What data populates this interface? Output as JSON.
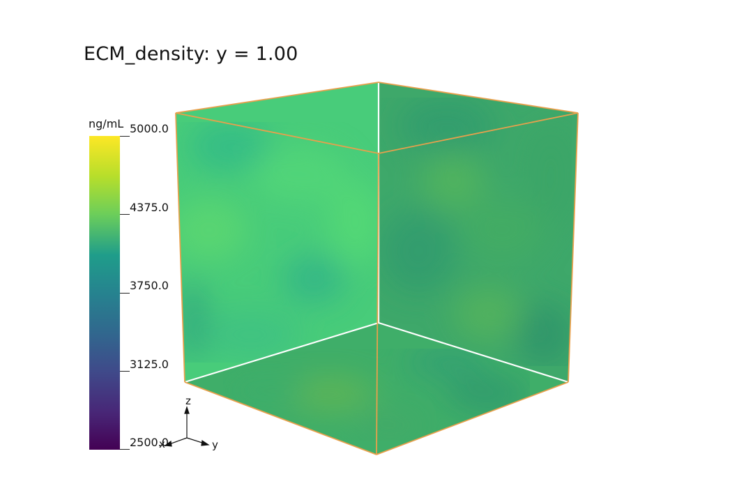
{
  "chart_data": {
    "type": "heatmap",
    "title": "ECM_density: y = 1.00",
    "colorbar": {
      "unit": "ng/mL",
      "colormap": "viridis",
      "range": [
        2500.0,
        5000.0
      ],
      "ticks": [
        "5000.0",
        "4375.0",
        "3750.0",
        "3125.0",
        "2500.0"
      ]
    },
    "axes_triad": {
      "labels": [
        "z",
        "y",
        "x"
      ]
    },
    "faces": [
      {
        "name": "left-face",
        "mean_value": 4150
      },
      {
        "name": "back-face",
        "mean_value": 4050
      },
      {
        "name": "bottom-face",
        "mean_value": 4000
      }
    ]
  },
  "colors": {
    "bounding_box": "#e8a04c",
    "inner_edges": "#ffffff",
    "face_left": "#48cc7a",
    "face_back": "#3ea86a",
    "face_bottom": "#3fae69"
  }
}
